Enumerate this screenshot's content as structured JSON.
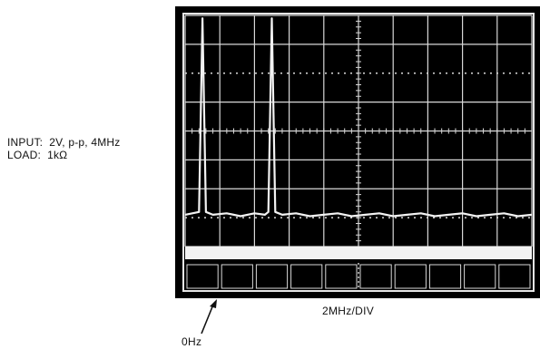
{
  "caption": {
    "input_label": "INPUT:",
    "input_value": "2V, p-p, 4MHz",
    "load_label": "LOAD:",
    "load_value": "1kΩ"
  },
  "chart_data": {
    "type": "line",
    "title": "",
    "xlabel": "2MHz/DIV",
    "ylabel": "",
    "x_divisions": 10,
    "x_units_per_division_mhz": 2,
    "xlim_mhz": [
      -1,
      19
    ],
    "ylim_divisions": [
      0,
      8
    ],
    "zero_marker_label": "0Hz",
    "grid": true,
    "background": "#000000",
    "trace_color": "#f2f2f2",
    "grid_color": "#d8d8d8",
    "series": [
      {
        "values_description_free": true,
        "x": [
          -1,
          -0.2,
          0,
          0.2,
          0.6,
          1.4,
          2.2,
          3.0,
          3.6,
          3.8,
          4.0,
          4.2,
          4.6,
          5.4,
          6.2,
          7.0,
          7.8,
          8.6,
          9.4,
          10.2,
          11.0,
          11.8,
          12.6,
          13.4,
          14.2,
          15.0,
          15.8,
          16.6,
          17.4,
          18.2,
          19
        ],
        "y": [
          1.1,
          1.2,
          7.9,
          1.2,
          1.1,
          1.15,
          1.05,
          1.15,
          1.1,
          1.2,
          7.9,
          1.2,
          1.1,
          1.15,
          1.05,
          1.1,
          1.15,
          1.05,
          1.1,
          1.15,
          1.05,
          1.1,
          1.15,
          1.05,
          1.1,
          1.15,
          1.05,
          1.1,
          1.15,
          1.05,
          1.1
        ]
      }
    ]
  }
}
